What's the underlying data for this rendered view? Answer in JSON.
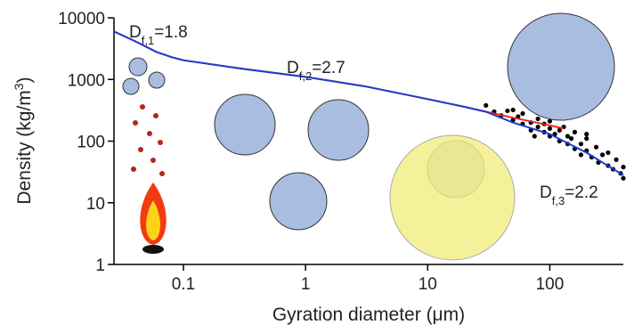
{
  "chart_data": {
    "type": "line",
    "xscale": "log",
    "yscale": "log",
    "xlabel": "Gyration diameter (μm)",
    "ylabel": {
      "text": "Density (kg/m",
      "sup": "3",
      "end": ")"
    },
    "xlim": [
      0.027,
      400
    ],
    "ylim": [
      1,
      10000
    ],
    "xticks": [
      0.1,
      1,
      10,
      100
    ],
    "yticks": [
      1,
      10,
      100,
      1000,
      10000
    ],
    "annotations": [
      {
        "base": "D",
        "sub": "f,1",
        "text": "=1.8"
      },
      {
        "base": "D",
        "sub": "f,2",
        "text": "=2.7"
      },
      {
        "base": "D",
        "sub": "f,3",
        "text": "=2.2"
      }
    ],
    "series": [
      {
        "type": "line",
        "color": "#e8262b",
        "x": [
          0.027,
          0.04,
          0.06,
          0.08,
          0.1,
          0.3,
          1,
          3,
          10,
          20,
          30,
          50,
          100,
          130
        ],
        "values": [
          6000,
          4200,
          2800,
          2300,
          2050,
          1500,
          1100,
          780,
          480,
          360,
          300,
          240,
          180,
          160
        ]
      },
      {
        "type": "line",
        "color": "#1f3bd1",
        "x": [
          0.027,
          0.04,
          0.06,
          0.08,
          0.1,
          0.3,
          1,
          3,
          10,
          20,
          30,
          50,
          100,
          200,
          400
        ],
        "values": [
          6000,
          4200,
          2800,
          2300,
          2050,
          1500,
          1100,
          780,
          480,
          360,
          300,
          200,
          130,
          65,
          28
        ]
      },
      {
        "type": "scatter",
        "color": "#000000",
        "x": [
          30,
          35,
          40,
          45,
          50,
          55,
          60,
          60,
          70,
          70,
          80,
          80,
          90,
          90,
          100,
          100,
          100,
          110,
          120,
          120,
          130,
          140,
          140,
          150,
          160,
          160,
          180,
          180,
          200,
          200,
          220,
          240,
          250,
          270,
          300,
          300,
          330,
          350,
          380,
          400,
          400,
          200,
          50,
          75
        ],
        "values": [
          380,
          300,
          260,
          310,
          220,
          250,
          190,
          280,
          200,
          150,
          170,
          230,
          140,
          190,
          120,
          160,
          210,
          130,
          100,
          150,
          170,
          90,
          120,
          110,
          75,
          140,
          90,
          60,
          70,
          110,
          55,
          80,
          45,
          60,
          40,
          65,
          35,
          50,
          30,
          38,
          25,
          130,
          320,
          120
        ]
      }
    ]
  }
}
